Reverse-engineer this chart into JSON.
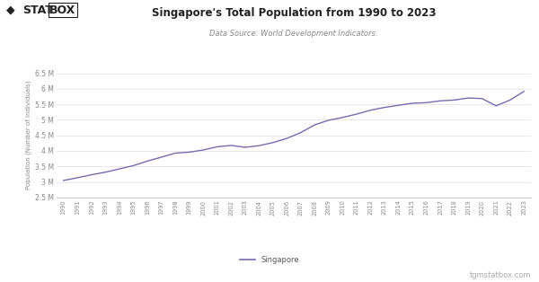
{
  "title": "Singapore's Total Population from 1990 to 2023",
  "subtitle": "Data Source: World Development Indicators.",
  "ylabel": "Population (Number of Individuals)",
  "legend_label": "Singapore",
  "watermark": "tgmstatbox.com",
  "line_color": "#7B68AE",
  "background_color": "#ffffff",
  "grid_color": "#dddddd",
  "ylim": [
    2500000,
    6500000
  ],
  "yticks": [
    2500000,
    3000000,
    3500000,
    4000000,
    4500000,
    5000000,
    5500000,
    6000000,
    6500000
  ],
  "ytick_labels": [
    "2.5 M",
    "3 M",
    "3.5 M",
    "4 M",
    "4.5 M",
    "5 M",
    "5.5 M",
    "6 M",
    "6.5 M"
  ],
  "years": [
    1990,
    1991,
    1992,
    1993,
    1994,
    1995,
    1996,
    1997,
    1998,
    1999,
    2000,
    2001,
    2002,
    2003,
    2004,
    2005,
    2006,
    2007,
    2008,
    2009,
    2010,
    2011,
    2012,
    2013,
    2014,
    2015,
    2016,
    2017,
    2018,
    2019,
    2020,
    2021,
    2022,
    2023
  ],
  "population": [
    3047000,
    3135000,
    3230000,
    3313000,
    3419000,
    3524000,
    3670000,
    3796000,
    3927000,
    3958000,
    4028000,
    4131000,
    4176000,
    4115000,
    4167000,
    4266000,
    4401000,
    4589000,
    4839000,
    4988000,
    5077000,
    5184000,
    5312000,
    5400000,
    5470000,
    5535000,
    5554000,
    5612000,
    5639000,
    5704000,
    5686000,
    5453000,
    5637000,
    5918000
  ],
  "logo_diamond": "◆",
  "logo_stat_color": "#222222",
  "logo_box_color": "#222222"
}
